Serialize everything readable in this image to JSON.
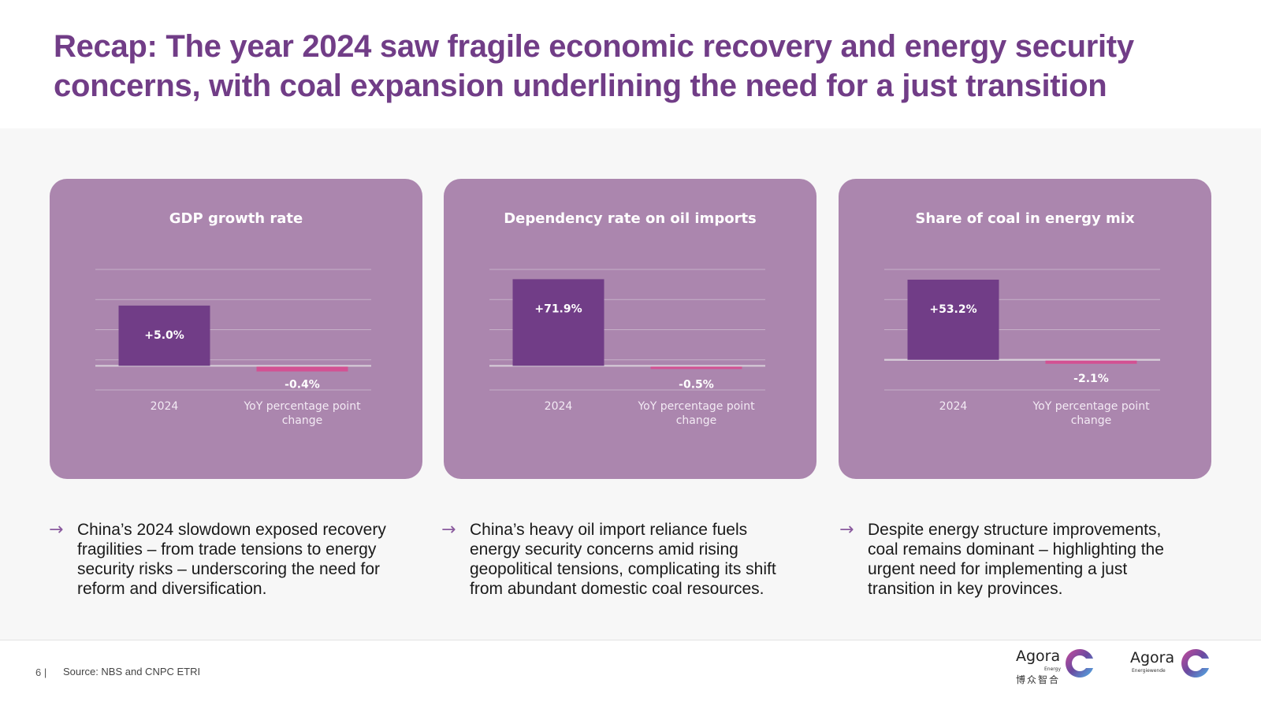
{
  "slide": {
    "title": "Recap: The year 2024 saw fragile economic recovery and energy security concerns, with coal expansion underlining the need for a just transition",
    "page_number": "6 |",
    "source": "Source: NBS and CNPC ETRI"
  },
  "colors": {
    "title": "#713d87",
    "card_bg": "#ab86ae",
    "bar_positive": "#713d87",
    "bar_negative": "#d35193",
    "gridline": "#c6b0c8"
  },
  "chart_data": [
    {
      "type": "bar",
      "title": "GDP growth rate",
      "categories": [
        "2024",
        "YoY percentage point change"
      ],
      "values": [
        5.0,
        -0.4
      ],
      "data_labels": [
        "+5.0%",
        "-0.4%"
      ],
      "xlabel": "",
      "ylabel": "",
      "ylim": [
        -2,
        8
      ],
      "grid": true
    },
    {
      "type": "bar",
      "title": "Dependency rate on oil imports",
      "categories": [
        "2024",
        "YoY percentage point change"
      ],
      "values": [
        71.9,
        -0.5
      ],
      "data_labels": [
        "+71.9%",
        "-0.5%"
      ],
      "xlabel": "",
      "ylabel": "",
      "ylim": [
        -20,
        80
      ],
      "grid": true
    },
    {
      "type": "bar",
      "title": "Share of coal in energy mix",
      "categories": [
        "2024",
        "YoY percentage point change"
      ],
      "values": [
        53.2,
        -2.1
      ],
      "data_labels": [
        "+53.2%",
        "-2.1%"
      ],
      "xlabel": "",
      "ylabel": "",
      "ylim": [
        -20,
        60
      ],
      "grid": true
    }
  ],
  "bullets": [
    "China’s 2024 slowdown exposed recovery fragilities –  from trade tensions to energy security risks – underscoring the need for reform and diversification.",
    "China’s heavy oil import reliance fuels energy security concerns amid rising geopolitical tensions, complicating its shift from abundant domestic coal resources.",
    "Despite energy structure improvements, coal remains dominant – highlighting the urgent need for implementing a just transition in key provinces."
  ],
  "logos": [
    {
      "name": "Agora",
      "sub": "Energy",
      "cn": "博众智合"
    },
    {
      "name": "Agora",
      "sub": "Energiewende"
    }
  ],
  "icons": {
    "bullet": "→"
  }
}
